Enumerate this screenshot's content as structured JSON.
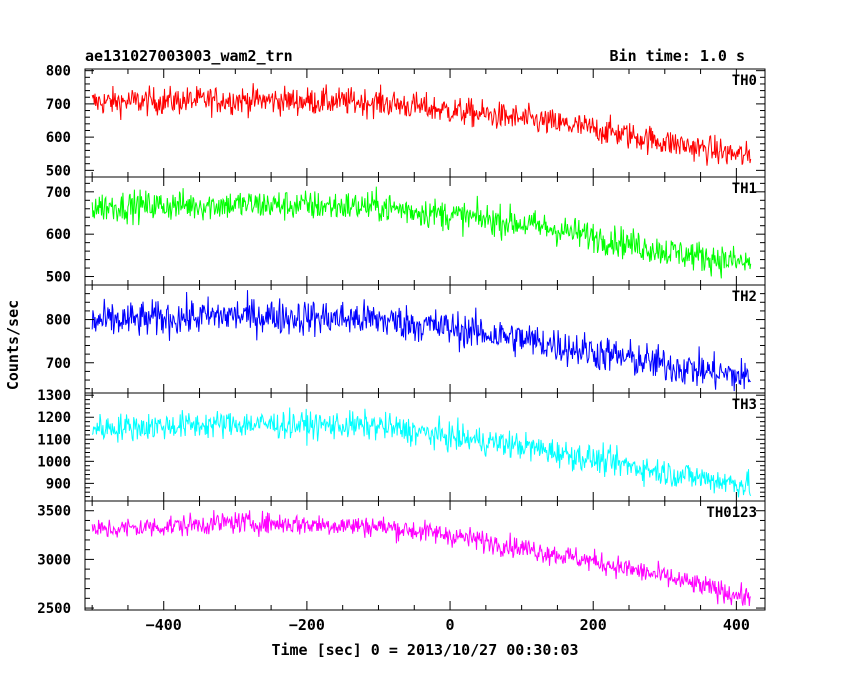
{
  "header": {
    "title": "ae131027003003_wam2_trn",
    "bin_time": "Bin time: 1.0 s"
  },
  "chart_data": {
    "type": "line",
    "ylabel": "Counts/sec",
    "xlabel": "Time [sec] 0 = 2013/10/27 00:30:03",
    "xlim": [
      -510,
      440
    ],
    "xticks": [
      -400,
      -200,
      0,
      200,
      400
    ],
    "x_range_data": [
      -500,
      420
    ],
    "bin_time_sec": 1.0,
    "panels": [
      {
        "name": "TH0",
        "color": "#ff0000",
        "ylim": [
          480,
          805
        ],
        "yticks": [
          500,
          600,
          700,
          800
        ],
        "trend": [
          [
            -500,
            705
          ],
          [
            -300,
            712
          ],
          [
            -100,
            705
          ],
          [
            0,
            680
          ],
          [
            100,
            655
          ],
          [
            200,
            625
          ],
          [
            300,
            585
          ],
          [
            420,
            540
          ]
        ],
        "noise": 30
      },
      {
        "name": "TH1",
        "color": "#00ff00",
        "ylim": [
          480,
          735
        ],
        "yticks": [
          500,
          600,
          700
        ],
        "trend": [
          [
            -500,
            665
          ],
          [
            -300,
            670
          ],
          [
            -100,
            665
          ],
          [
            0,
            645
          ],
          [
            100,
            625
          ],
          [
            200,
            595
          ],
          [
            300,
            560
          ],
          [
            420,
            530
          ]
        ],
        "noise": 26
      },
      {
        "name": "TH2",
        "color": "#0000ff",
        "ylim": [
          630,
          880
        ],
        "yticks": [
          700,
          800
        ],
        "trend": [
          [
            -500,
            795
          ],
          [
            -300,
            810
          ],
          [
            -100,
            800
          ],
          [
            0,
            780
          ],
          [
            100,
            755
          ],
          [
            200,
            725
          ],
          [
            300,
            695
          ],
          [
            420,
            665
          ]
        ],
        "noise": 30
      },
      {
        "name": "TH3",
        "color": "#00ffff",
        "ylim": [
          820,
          1310
        ],
        "yticks": [
          900,
          1000,
          1100,
          1200,
          1300
        ],
        "trend": [
          [
            -500,
            1150
          ],
          [
            -300,
            1170
          ],
          [
            -100,
            1160
          ],
          [
            0,
            1110
          ],
          [
            100,
            1070
          ],
          [
            200,
            1010
          ],
          [
            300,
            950
          ],
          [
            420,
            890
          ]
        ],
        "noise": 45
      },
      {
        "name": "TH0123",
        "color": "#ff00ff",
        "ylim": [
          2480,
          3600
        ],
        "yticks": [
          2500,
          3000,
          3500
        ],
        "trend": [
          [
            -500,
            3300
          ],
          [
            -300,
            3380
          ],
          [
            -100,
            3340
          ],
          [
            0,
            3250
          ],
          [
            100,
            3120
          ],
          [
            200,
            2980
          ],
          [
            300,
            2820
          ],
          [
            420,
            2600
          ]
        ],
        "noise": 80
      }
    ]
  }
}
